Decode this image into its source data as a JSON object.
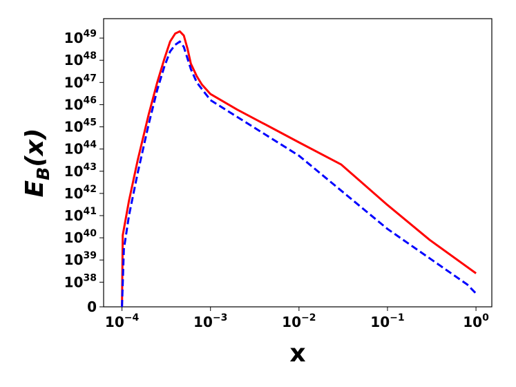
{
  "chart_data": {
    "type": "line",
    "xlabel": "x",
    "ylabel": "E_B(x)",
    "xscale": "log",
    "yscale": "symlog",
    "linthresh": 1e+38,
    "xlim": [
      6.2e-05,
      1.51
    ],
    "ylim": [
      0,
      7.5e+49
    ],
    "xticks": [
      {
        "value": 0.0001,
        "label": "10^−4"
      },
      {
        "value": 0.001,
        "label": "10^−3"
      },
      {
        "value": 0.01,
        "label": "10^−2"
      },
      {
        "value": 0.1,
        "label": "10^−1"
      },
      {
        "value": 1,
        "label": "10^0"
      }
    ],
    "yticks": [
      0,
      {
        "value": 1e+38,
        "label": "10^38"
      },
      {
        "value": 1e+39,
        "label": "10^39"
      },
      {
        "value": 1e+40,
        "label": "10^40"
      },
      {
        "value": 1e+41,
        "label": "10^41"
      },
      {
        "value": 1e+42,
        "label": "10^42"
      },
      {
        "value": 1e+43,
        "label": "10^43"
      },
      {
        "value": 1e+44,
        "label": "10^44"
      },
      {
        "value": 1e+45,
        "label": "10^45"
      },
      {
        "value": 1e+46,
        "label": "10^46"
      },
      {
        "value": 1e+47,
        "label": "10^47"
      },
      {
        "value": 1e+48,
        "label": "10^48"
      },
      {
        "value": 1e+49,
        "label": "10^49"
      }
    ],
    "series": [
      {
        "color": "#ff0000",
        "dash": false,
        "x": [
          0.0001,
          0.000102,
          0.00012,
          0.00015,
          0.0002,
          0.00025,
          0.0003,
          0.00035,
          0.0004,
          0.00045,
          0.0005,
          0.00055,
          0.0006,
          0.0007,
          0.0008,
          0.001,
          0.002,
          0.005,
          0.01,
          0.03,
          0.1,
          0.3,
          1
        ],
        "values": [
          0,
          1.3e+40,
          4.6e+41,
          3e+43,
          3.6e+45,
          1e+47,
          1.1e+48,
          7e+48,
          1.6e+49,
          2e+49,
          1.3e+49,
          3.3e+48,
          7e+47,
          1.9e+47,
          8e+46,
          3e+46,
          6e+45,
          8.7e+44,
          2e+44,
          2e+43,
          3e+41,
          8e+39,
          2.5e+38
        ]
      },
      {
        "color": "#0000ff",
        "dash": true,
        "x": [
          0.0001,
          0.000105,
          0.00012,
          0.00015,
          0.0002,
          0.00025,
          0.0003,
          0.00035,
          0.0004,
          0.00045,
          0.0005,
          0.0006,
          0.0007,
          0.001,
          0.01,
          0.1,
          0.8,
          1
        ],
        "values": [
          0,
          3e+39,
          1e+41,
          8e+42,
          1.3e+45,
          4.6e+46,
          5e+47,
          2.5e+48,
          5e+48,
          7e+48,
          4e+48,
          4e+47,
          1e+47,
          1.6e+46,
          5e+43,
          2.5e+40,
          9e+37,
          5.4e+37
        ]
      }
    ]
  }
}
